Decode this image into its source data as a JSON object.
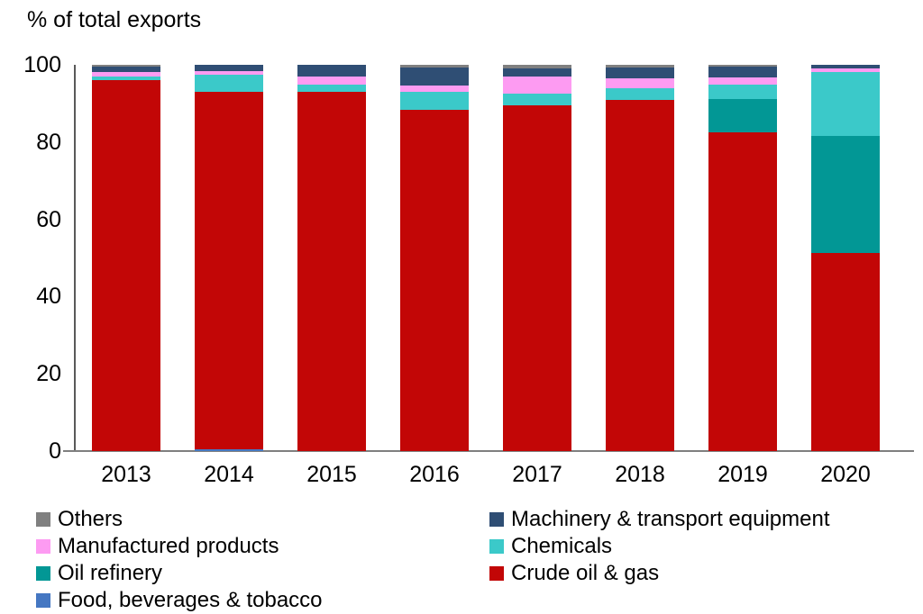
{
  "title": "% of total exports",
  "chart_data": {
    "type": "bar",
    "stacked": true,
    "title": "% of total exports",
    "xlabel": "",
    "ylabel": "",
    "ylim": [
      0,
      100
    ],
    "yticks": [
      0,
      20,
      40,
      60,
      80,
      100
    ],
    "grid": false,
    "legend_position": "bottom",
    "categories": [
      "2013",
      "2014",
      "2015",
      "2016",
      "2017",
      "2018",
      "2019",
      "2020"
    ],
    "series": [
      {
        "name": "Food, beverages & tobacco",
        "color": "#4577C2",
        "values": [
          0,
          0.4,
          0,
          0,
          0,
          0,
          0,
          0
        ]
      },
      {
        "name": "Crude oil & gas",
        "color": "#C20606",
        "values": [
          96.0,
          92.5,
          93.0,
          88.4,
          89.5,
          91.0,
          82.6,
          51.3
        ]
      },
      {
        "name": "Oil refinery",
        "color": "#029795",
        "values": [
          0,
          0,
          0,
          0,
          0,
          0,
          8.6,
          30.2
        ]
      },
      {
        "name": "Chemicals",
        "color": "#3BC9C9",
        "values": [
          0.9,
          4.5,
          1.8,
          4.6,
          3.1,
          3.0,
          3.7,
          16.7
        ]
      },
      {
        "name": "Manufactured products",
        "color": "#FD9BF2",
        "values": [
          1.2,
          0.9,
          2.1,
          1.6,
          4.3,
          2.6,
          1.8,
          0.8
        ]
      },
      {
        "name": "Machinery & transport equipment",
        "color": "#2F4E74",
        "values": [
          1.5,
          1.7,
          3.1,
          4.6,
          2.2,
          2.7,
          2.8,
          1.0
        ]
      },
      {
        "name": "Others",
        "color": "#808080",
        "values": [
          0.4,
          0,
          0,
          0.8,
          0.9,
          0.7,
          0.5,
          0
        ]
      }
    ]
  },
  "legend": {
    "columns": [
      {
        "items": [
          "Others",
          "Manufactured products",
          "Oil refinery",
          "Food, beverages & tobacco"
        ]
      },
      {
        "items": [
          "Machinery & transport equipment",
          "Chemicals",
          "Crude oil & gas"
        ]
      }
    ]
  }
}
